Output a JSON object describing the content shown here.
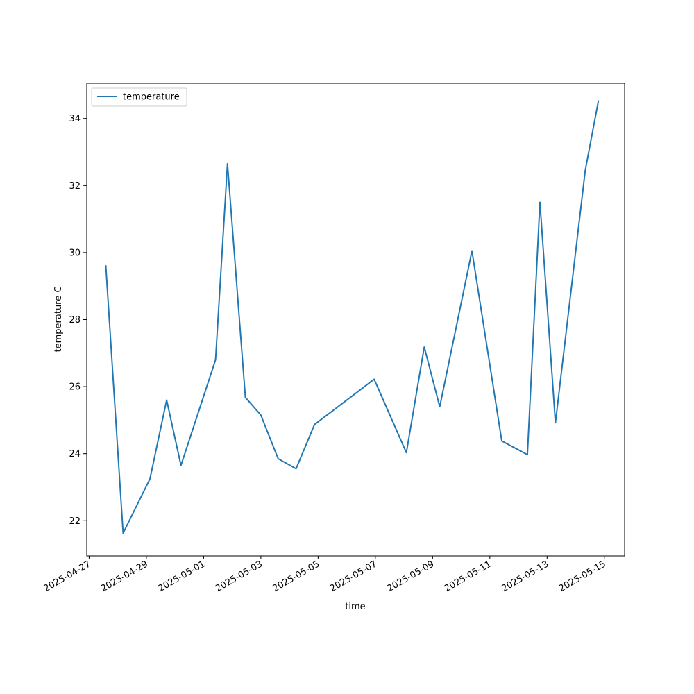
{
  "chart_data": {
    "type": "line",
    "title": "",
    "xlabel": "time",
    "ylabel": "temperature C",
    "x_axis_type": "date",
    "xlim": [
      "2025-04-26T22:00",
      "2025-05-15T17:00"
    ],
    "ylim": [
      20.95,
      35.05
    ],
    "grid": false,
    "legend": {
      "placement": "top-left",
      "entries": [
        "temperature"
      ]
    },
    "x_ticks": [
      "2025-04-27",
      "2025-04-29",
      "2025-05-01",
      "2025-05-03",
      "2025-05-05",
      "2025-05-07",
      "2025-05-09",
      "2025-05-11",
      "2025-05-13",
      "2025-05-15"
    ],
    "y_ticks": [
      22,
      24,
      26,
      28,
      30,
      32,
      34
    ],
    "series": [
      {
        "name": "temperature",
        "color": "#1f77b4",
        "points": [
          {
            "x": "2025-04-27T14:00",
            "y": 29.6
          },
          {
            "x": "2025-04-28T04:30",
            "y": 21.63
          },
          {
            "x": "2025-04-29T03:00",
            "y": 23.25
          },
          {
            "x": "2025-04-29T17:00",
            "y": 25.6
          },
          {
            "x": "2025-04-30T05:00",
            "y": 23.65
          },
          {
            "x": "2025-05-01T10:00",
            "y": 26.8
          },
          {
            "x": "2025-05-01T20:00",
            "y": 32.65
          },
          {
            "x": "2025-05-02T11:00",
            "y": 25.68
          },
          {
            "x": "2025-05-03T00:00",
            "y": 25.15
          },
          {
            "x": "2025-05-03T14:30",
            "y": 23.85
          },
          {
            "x": "2025-05-04T05:30",
            "y": 23.55
          },
          {
            "x": "2025-05-04T21:00",
            "y": 24.87
          },
          {
            "x": "2025-05-06T23:00",
            "y": 26.22
          },
          {
            "x": "2025-05-08T02:00",
            "y": 24.03
          },
          {
            "x": "2025-05-08T17:00",
            "y": 27.18
          },
          {
            "x": "2025-05-09T06:00",
            "y": 25.4
          },
          {
            "x": "2025-05-10T09:00",
            "y": 30.05
          },
          {
            "x": "2025-05-11T10:00",
            "y": 24.38
          },
          {
            "x": "2025-05-12T07:30",
            "y": 23.97
          },
          {
            "x": "2025-05-12T18:00",
            "y": 31.5
          },
          {
            "x": "2025-05-13T07:00",
            "y": 24.92
          },
          {
            "x": "2025-05-14T08:00",
            "y": 32.45
          },
          {
            "x": "2025-05-14T19:00",
            "y": 34.52
          }
        ]
      }
    ]
  }
}
